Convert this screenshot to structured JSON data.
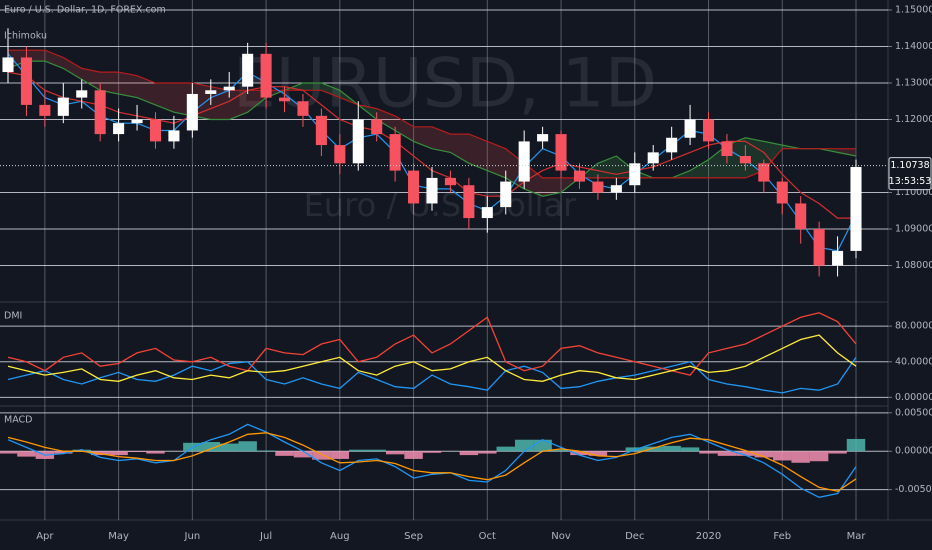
{
  "chart_data": [
    {
      "type": "candlestick",
      "title": "Euro / U.S. Dollar, 1D, FOREX.com",
      "indicator": "Ichimoku",
      "watermark": "EURUSD, 1D",
      "watermark_subtitle": "Euro / U.S. Dollar",
      "categories": [
        null,
        null,
        "Apr",
        null,
        null,
        null,
        "May",
        null,
        null,
        null,
        "Jun",
        null,
        null,
        null,
        "Jul",
        null,
        null,
        null,
        "Aug",
        null,
        null,
        null,
        "Sep",
        null,
        null,
        null,
        "Oct",
        null,
        null,
        null,
        "Nov",
        null,
        null,
        null,
        "Dec",
        null,
        null,
        null,
        "2020",
        null,
        null,
        null,
        "Feb",
        null,
        null,
        null,
        "Mar"
      ],
      "open": [
        1.133,
        1.137,
        1.124,
        1.121,
        1.126,
        1.128,
        1.116,
        1.119,
        1.12,
        1.114,
        1.117,
        1.127,
        1.128,
        1.129,
        1.138,
        1.126,
        1.125,
        1.121,
        1.113,
        1.108,
        1.12,
        1.116,
        1.106,
        1.097,
        1.104,
        1.102,
        1.093,
        1.096,
        1.103,
        1.114,
        1.116,
        1.106,
        1.103,
        1.1,
        1.102,
        1.108,
        1.111,
        1.115,
        1.12,
        1.114,
        1.11,
        1.108,
        1.103,
        1.097,
        1.09,
        1.08,
        1.084
      ],
      "high": [
        1.145,
        1.14,
        1.128,
        1.13,
        1.131,
        1.13,
        1.123,
        1.124,
        1.122,
        1.121,
        1.13,
        1.131,
        1.133,
        1.141,
        1.141,
        1.129,
        1.127,
        1.123,
        1.116,
        1.125,
        1.122,
        1.118,
        1.108,
        1.107,
        1.106,
        1.104,
        1.099,
        1.106,
        1.117,
        1.118,
        1.117,
        1.108,
        1.105,
        1.104,
        1.111,
        1.113,
        1.118,
        1.124,
        1.122,
        1.116,
        1.113,
        1.109,
        1.104,
        1.099,
        1.092,
        1.088,
        1.109
      ],
      "low": [
        1.13,
        1.121,
        1.118,
        1.119,
        1.123,
        1.114,
        1.114,
        1.117,
        1.112,
        1.112,
        1.115,
        1.124,
        1.126,
        1.127,
        1.123,
        1.122,
        1.118,
        1.11,
        1.105,
        1.106,
        1.114,
        1.103,
        1.094,
        1.095,
        1.1,
        1.09,
        1.089,
        1.094,
        1.101,
        1.112,
        1.104,
        1.101,
        1.098,
        1.098,
        1.1,
        1.106,
        1.109,
        1.113,
        1.112,
        1.108,
        1.106,
        1.1,
        1.094,
        1.086,
        1.077,
        1.077,
        1.082
      ],
      "close": [
        1.137,
        1.124,
        1.121,
        1.126,
        1.128,
        1.116,
        1.119,
        1.12,
        1.114,
        1.117,
        1.127,
        1.128,
        1.129,
        1.138,
        1.126,
        1.125,
        1.121,
        1.113,
        1.108,
        1.12,
        1.116,
        1.106,
        1.097,
        1.104,
        1.102,
        1.093,
        1.096,
        1.103,
        1.114,
        1.116,
        1.106,
        1.103,
        1.1,
        1.102,
        1.108,
        1.111,
        1.115,
        1.12,
        1.114,
        1.11,
        1.108,
        1.103,
        1.097,
        1.09,
        1.08,
        1.084,
        1.107
      ],
      "up_color": "#ffffff",
      "down_color": "#f7525f",
      "series": [
        {
          "color": "#388e3c",
          "values": [
            1.134,
            1.136,
            1.136,
            1.134,
            1.131,
            1.128,
            1.127,
            1.126,
            1.124,
            1.122,
            1.121,
            1.12,
            1.12,
            1.122,
            1.126,
            1.128,
            1.13,
            1.13,
            1.128,
            1.124,
            1.12,
            1.117,
            1.114,
            1.112,
            1.111,
            1.108,
            1.106,
            1.104,
            1.101,
            1.099,
            1.1,
            1.104,
            1.108,
            1.11,
            1.106,
            1.104,
            1.104,
            1.106,
            1.109,
            1.113,
            1.115,
            1.114,
            1.113,
            1.112,
            1.112,
            1.111,
            1.11
          ]
        },
        {
          "color": "#b71c1c",
          "values": [
            1.139,
            1.139,
            1.139,
            1.137,
            1.134,
            1.133,
            1.133,
            1.132,
            1.13,
            1.13,
            1.13,
            1.129,
            1.128,
            1.128,
            1.128,
            1.128,
            1.128,
            1.128,
            1.126,
            1.124,
            1.123,
            1.121,
            1.118,
            1.118,
            1.116,
            1.116,
            1.114,
            1.112,
            1.108,
            1.104,
            1.104,
            1.104,
            1.104,
            1.104,
            1.104,
            1.104,
            1.104,
            1.104,
            1.104,
            1.104,
            1.104,
            1.106,
            1.112,
            1.112,
            1.112,
            1.112,
            1.112
          ]
        },
        {
          "color": "#2196f3",
          "values": [
            1.138,
            1.132,
            1.126,
            1.124,
            1.125,
            1.121,
            1.119,
            1.119,
            1.117,
            1.117,
            1.122,
            1.126,
            1.128,
            1.133,
            1.13,
            1.127,
            1.123,
            1.117,
            1.112,
            1.115,
            1.116,
            1.111,
            1.102,
            1.101,
            1.101,
            1.097,
            1.095,
            1.099,
            1.107,
            1.112,
            1.11,
            1.105,
            1.102,
            1.101,
            1.105,
            1.109,
            1.113,
            1.117,
            1.116,
            1.112,
            1.109,
            1.105,
            1.099,
            1.092,
            1.085,
            1.084,
            1.094
          ]
        },
        {
          "color": "#d32f2f",
          "values": [
            1.133,
            1.132,
            1.128,
            1.126,
            1.125,
            1.124,
            1.122,
            1.121,
            1.12,
            1.119,
            1.121,
            1.123,
            1.125,
            1.128,
            1.129,
            1.129,
            1.128,
            1.124,
            1.12,
            1.118,
            1.117,
            1.114,
            1.11,
            1.106,
            1.104,
            1.1,
            1.099,
            1.099,
            1.103,
            1.106,
            1.108,
            1.107,
            1.106,
            1.105,
            1.106,
            1.107,
            1.109,
            1.111,
            1.113,
            1.114,
            1.114,
            1.111,
            1.105,
            1.1,
            1.097,
            1.093,
            1.093
          ]
        }
      ],
      "cloud_up_color": "#4caf50",
      "cloud_down_color": "#ef5350",
      "last_price": 1.10738,
      "countdown": "13:53:53",
      "ylim": [
        1.07055,
        1.15274
      ],
      "yticks": [
        {
          "value": 1.15,
          "label": "1.15000"
        },
        {
          "value": 1.14,
          "label": "1.14000"
        },
        {
          "value": 1.13,
          "label": "1.13000"
        },
        {
          "value": 1.12,
          "label": "1.12000"
        },
        {
          "value": 1.1,
          "label": "1.10000"
        },
        {
          "value": 1.09,
          "label": "1.09000"
        },
        {
          "value": 1.08,
          "label": "1.08000"
        }
      ],
      "grid": true
    },
    {
      "type": "line",
      "title": "DMI",
      "series": [
        {
          "color": "#2196f3",
          "values": [
            20,
            25,
            30,
            20,
            15,
            22,
            28,
            20,
            18,
            25,
            35,
            30,
            38,
            40,
            20,
            15,
            22,
            15,
            10,
            28,
            20,
            12,
            10,
            25,
            15,
            12,
            8,
            30,
            35,
            28,
            10,
            12,
            18,
            22,
            25,
            30,
            35,
            40,
            20,
            15,
            12,
            8,
            5,
            10,
            8,
            15,
            45
          ]
        },
        {
          "color": "#f44336",
          "values": [
            45,
            40,
            30,
            45,
            50,
            35,
            38,
            50,
            55,
            42,
            40,
            45,
            35,
            30,
            55,
            50,
            48,
            60,
            65,
            40,
            45,
            60,
            70,
            50,
            60,
            75,
            90,
            40,
            30,
            35,
            55,
            58,
            50,
            45,
            40,
            35,
            30,
            25,
            50,
            55,
            60,
            70,
            80,
            90,
            95,
            85,
            60
          ]
        },
        {
          "color": "#ffeb3b",
          "values": [
            35,
            30,
            25,
            28,
            32,
            20,
            18,
            25,
            30,
            22,
            20,
            25,
            22,
            30,
            28,
            30,
            35,
            40,
            45,
            30,
            25,
            35,
            40,
            30,
            32,
            40,
            45,
            30,
            20,
            18,
            25,
            30,
            28,
            22,
            20,
            25,
            30,
            35,
            28,
            30,
            35,
            45,
            55,
            65,
            70,
            50,
            35
          ]
        }
      ],
      "ylim": [
        -8.6,
        104.9
      ],
      "yticks": [
        {
          "value": 80,
          "label": "80.00000"
        },
        {
          "value": 40,
          "label": "40.00000"
        },
        {
          "value": 0,
          "label": "0.00000"
        }
      ],
      "grid": true
    },
    {
      "type": "line",
      "title": "MACD",
      "series": [
        {
          "type": "bar",
          "positive_color": "#4db6ac",
          "negative_color": "#f48fb1",
          "values": [
            -0.0003,
            -0.0007,
            -0.001,
            -0.0003,
            0.0002,
            -0.0005,
            -0.0005,
            -0.0001,
            -0.0003,
            0.0,
            0.0011,
            0.0012,
            0.001,
            0.0013,
            0.0001,
            -0.0006,
            -0.0008,
            -0.0011,
            -0.001,
            0.0002,
            0.0002,
            -0.0004,
            -0.001,
            -0.0002,
            0.0,
            -0.0005,
            -0.0003,
            0.0006,
            0.0015,
            0.0015,
            0.0002,
            -0.0005,
            -0.0006,
            -0.0001,
            0.0005,
            0.0006,
            0.0007,
            0.0005,
            -0.0003,
            -0.0006,
            -0.0006,
            -0.0008,
            -0.0012,
            -0.0015,
            -0.0013,
            -0.0003,
            0.0016
          ]
        },
        {
          "color": "#2196f3",
          "values": [
            0.0015,
            0.0005,
            -0.0005,
            -0.0003,
            0.0002,
            -0.0008,
            -0.0012,
            -0.001,
            -0.0015,
            -0.0012,
            0.0005,
            0.0015,
            0.0022,
            0.0035,
            0.0025,
            0.0012,
            0.0,
            -0.0015,
            -0.0025,
            -0.0012,
            -0.001,
            -0.002,
            -0.0035,
            -0.003,
            -0.0028,
            -0.0038,
            -0.004,
            -0.0025,
            0.0,
            0.0015,
            0.0005,
            -0.0005,
            -0.0012,
            -0.0008,
            0.0002,
            0.001,
            0.0018,
            0.0022,
            0.0012,
            0.0002,
            -0.0005,
            -0.0015,
            -0.003,
            -0.0048,
            -0.006,
            -0.0055,
            -0.002
          ]
        },
        {
          "color": "#ff9800",
          "values": [
            0.0018,
            0.0012,
            0.0005,
            0.0,
            0.0,
            -0.0003,
            -0.0007,
            -0.0009,
            -0.0012,
            -0.0012,
            -0.0006,
            0.0003,
            0.0012,
            0.0022,
            0.0024,
            0.0018,
            0.0008,
            -0.0004,
            -0.0015,
            -0.0014,
            -0.0012,
            -0.0016,
            -0.0025,
            -0.0028,
            -0.0028,
            -0.0033,
            -0.0037,
            -0.0031,
            -0.0015,
            0.0,
            0.0003,
            0.0,
            -0.0006,
            -0.0007,
            -0.0003,
            0.0004,
            0.0011,
            0.0017,
            0.0015,
            0.0008,
            0.0001,
            -0.0007,
            -0.0018,
            -0.0033,
            -0.0047,
            -0.0052,
            -0.0036
          ]
        }
      ],
      "ylim": [
        -0.00895,
        0.00563
      ],
      "yticks": [
        {
          "value": 0.005,
          "label": "0.00500"
        },
        {
          "value": 0,
          "label": "0.00000"
        },
        {
          "value": -0.005,
          "label": "-0.00500"
        }
      ],
      "grid": true
    }
  ]
}
